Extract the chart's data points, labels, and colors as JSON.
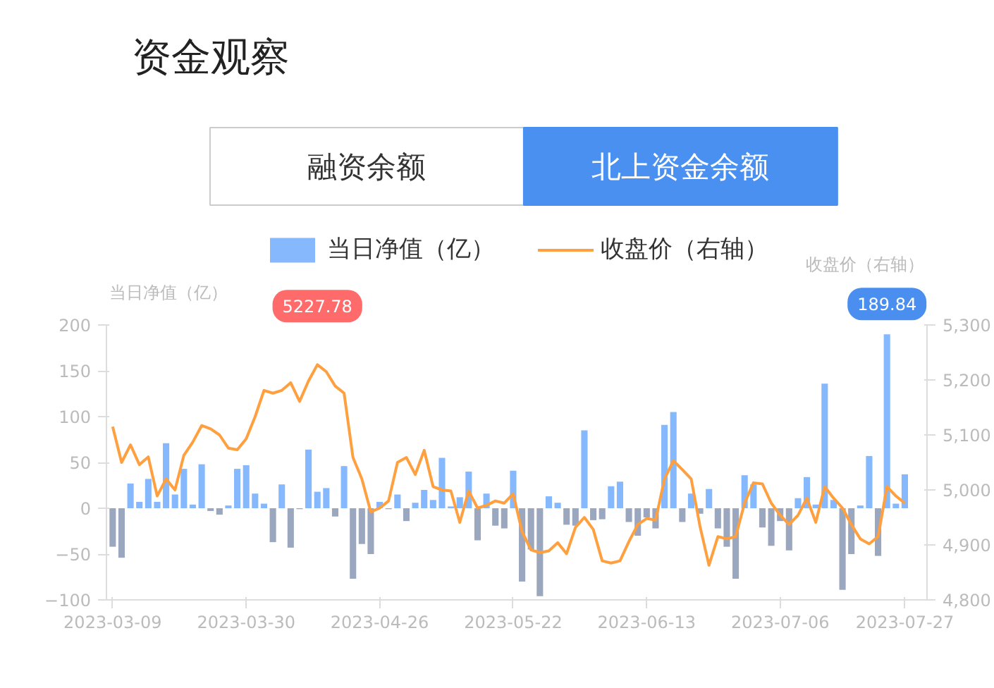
{
  "chart_data": {
    "type": "bar",
    "title": "资金观察",
    "ylabel": "当日净值（亿）",
    "y2label": "收盘价（右轴）",
    "annotations": [
      "融资余额",
      "北上资金余额"
    ],
    "categories": [
      "2023-03-09",
      null,
      null,
      null,
      null,
      null,
      null,
      null,
      null,
      null,
      null,
      null,
      null,
      null,
      null,
      "2023-03-30",
      null,
      null,
      null,
      null,
      null,
      null,
      null,
      null,
      null,
      null,
      null,
      null,
      null,
      null,
      "2023-04-26",
      null,
      null,
      null,
      null,
      null,
      null,
      null,
      null,
      null,
      null,
      null,
      null,
      null,
      null,
      "2023-05-22",
      null,
      null,
      null,
      null,
      null,
      null,
      null,
      null,
      null,
      null,
      null,
      null,
      null,
      null,
      "2023-06-13",
      null,
      null,
      null,
      null,
      null,
      null,
      null,
      null,
      null,
      null,
      null,
      null,
      null,
      null,
      "2023-07-06",
      null,
      null,
      null,
      null,
      null,
      null,
      null,
      null,
      null,
      null,
      null,
      null,
      null,
      "2023-07-27"
    ],
    "series": [
      {
        "name": "当日净值（亿）",
        "color": "#86b8fd",
        "colors": [
          "#9aa7bf",
          "#9aa7bf",
          "#86b8fd",
          "#86b8fd",
          "#86b8fd",
          "#86b8fd",
          "#86b8fd",
          "#86b8fd",
          "#86b8fd",
          "#86b8fd",
          "#86b8fd",
          "#9aa7bf",
          "#9aa7bf",
          "#86b8fd",
          "#86b8fd",
          "#86b8fd",
          "#86b8fd",
          "#86b8fd",
          "#9aa7bf",
          "#86b8fd",
          "#9aa7bf",
          "#9aa7bf",
          "#86b8fd",
          "#86b8fd",
          "#86b8fd",
          "#9aa7bf",
          "#86b8fd",
          "#9aa7bf",
          "#9aa7bf",
          "#9aa7bf",
          "#86b8fd",
          "#9aa7bf",
          "#86b8fd",
          "#9aa7bf",
          "#86b8fd",
          "#86b8fd",
          "#86b8fd",
          "#86b8fd",
          "#86b8fd",
          "#86b8fd",
          "#86b8fd",
          "#9aa7bf",
          "#86b8fd",
          "#9aa7bf",
          "#9aa7bf",
          "#86b8fd",
          "#9aa7bf",
          "#9aa7bf",
          "#9aa7bf",
          "#86b8fd",
          "#86b8fd",
          "#9aa7bf",
          "#9aa7bf",
          "#86b8fd",
          "#9aa7bf",
          "#9aa7bf",
          "#86b8fd",
          "#86b8fd",
          "#9aa7bf",
          "#9aa7bf",
          "#9aa7bf",
          "#9aa7bf",
          "#86b8fd",
          "#86b8fd",
          "#9aa7bf",
          "#86b8fd",
          "#9aa7bf",
          "#86b8fd",
          "#9aa7bf",
          "#9aa7bf",
          "#9aa7bf",
          "#86b8fd",
          "#86b8fd",
          "#9aa7bf",
          "#9aa7bf",
          "#9aa7bf",
          "#9aa7bf",
          "#86b8fd",
          "#86b8fd",
          "#86b8fd",
          "#86b8fd",
          "#86b8fd",
          "#9aa7bf",
          "#9aa7bf",
          "#86b8fd",
          "#86b8fd",
          "#9aa7bf",
          "#86b8fd",
          "#86b8fd",
          "#86b8fd"
        ],
        "values": [
          -42,
          -54,
          27,
          7,
          32,
          7,
          71,
          15,
          43,
          4,
          48,
          -3,
          -7,
          3,
          43,
          47,
          16,
          5,
          -37,
          26,
          -43,
          -1,
          64,
          18,
          22,
          -9,
          46,
          -77,
          -39,
          -50,
          7,
          -1,
          15,
          -14,
          6,
          20,
          9,
          55,
          2,
          12,
          40,
          -35,
          16,
          -19,
          -22,
          41,
          -80,
          -45,
          -96,
          13,
          6,
          -18,
          -19,
          85,
          -13,
          -12,
          24,
          29,
          -15,
          -30,
          -10,
          -22,
          91,
          105,
          -15,
          16,
          -6,
          21,
          -22,
          -42,
          -77,
          36,
          26,
          -21,
          -41,
          -14,
          -46,
          11,
          34,
          4,
          136,
          9,
          -89,
          -50,
          3,
          57,
          -52,
          189.84,
          5,
          37
        ],
        "value_labels": [
          null,
          null,
          null,
          null,
          null,
          null,
          null,
          null,
          null,
          null,
          null,
          null,
          null,
          null,
          null,
          null,
          null,
          null,
          null,
          null,
          null,
          null,
          null,
          null,
          null,
          null,
          null,
          null,
          null,
          null,
          null,
          null,
          null,
          null,
          null,
          null,
          null,
          null,
          null,
          null,
          null,
          null,
          null,
          null,
          null,
          null,
          null,
          null,
          null,
          null,
          null,
          null,
          null,
          null,
          null,
          null,
          null,
          null,
          null,
          null,
          null,
          null,
          null,
          null,
          null,
          null,
          null,
          null,
          null,
          null,
          null,
          null,
          null,
          null,
          null,
          null,
          null,
          null,
          null,
          null,
          null,
          null,
          null,
          null,
          null,
          null,
          null,
          "189.84",
          null,
          null
        ]
      },
      {
        "name": "收盘价（右轴）",
        "type": "line",
        "axis": "y2",
        "color": "#ffa040",
        "values": [
          5115,
          5050,
          5082,
          5046,
          5060,
          4989,
          5020,
          5000,
          5063,
          5087,
          5117,
          5111,
          5100,
          5076,
          5073,
          5093,
          5133,
          5181,
          5176,
          5181,
          5195,
          5161,
          5198,
          5227.78,
          5215,
          5189,
          5176,
          5059,
          5020,
          4960,
          4967,
          4980,
          5050,
          5059,
          5028,
          5072,
          5006,
          5000,
          4998,
          4941,
          4998,
          4967,
          4972,
          4980,
          4976,
          4993,
          4924,
          4891,
          4886,
          4889,
          4904,
          4884,
          4932,
          4950,
          4928,
          4871,
          4867,
          4871,
          4906,
          4937,
          4948,
          4945,
          5020,
          5053,
          5037,
          5020,
          4933,
          4863,
          4915,
          4911,
          4915,
          4976,
          5013,
          5011,
          4976,
          4954,
          4937,
          4954,
          4985,
          4941,
          5006,
          4985,
          4967,
          4937,
          4911,
          4902,
          4915,
          5006,
          4989,
          4976
        ],
        "value_labels": [
          null,
          null,
          null,
          null,
          null,
          null,
          null,
          null,
          null,
          null,
          null,
          null,
          null,
          null,
          null,
          null,
          null,
          null,
          null,
          null,
          null,
          null,
          null,
          "5227.78",
          null,
          null,
          null,
          null,
          null,
          null,
          null,
          null,
          null,
          null,
          null,
          null,
          null,
          null,
          null,
          null,
          null,
          null,
          null,
          null,
          null,
          null,
          null,
          null,
          null,
          null,
          null,
          null,
          null,
          null,
          null,
          null,
          null,
          null,
          null,
          null,
          null,
          null,
          null,
          null,
          null,
          null,
          null,
          null,
          null,
          null,
          null,
          null,
          null,
          null,
          null,
          null,
          null,
          null,
          null,
          null,
          null,
          null,
          null,
          null,
          null,
          null,
          null,
          null,
          null,
          null
        ]
      }
    ],
    "ylim": [
      -100,
      200
    ],
    "yticks": [
      -100,
      -50,
      0,
      50,
      100,
      150,
      200
    ],
    "y2lim": [
      4800,
      5300
    ],
    "y2ticks": [
      {
        "value": 4800,
        "label": "4,800"
      },
      {
        "value": 4900,
        "label": "4,900"
      },
      {
        "value": 5000,
        "label": "5,000"
      },
      {
        "value": 5100,
        "label": "5,100"
      },
      {
        "value": 5200,
        "label": "5,200"
      },
      {
        "value": 5300,
        "label": "5,300"
      }
    ],
    "legend": "top"
  }
}
